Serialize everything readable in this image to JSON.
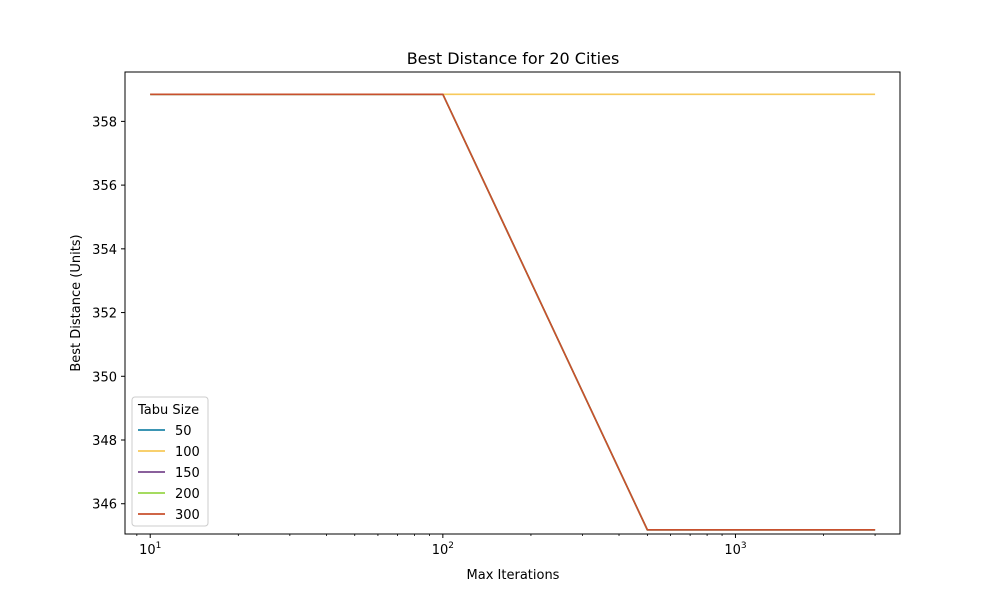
{
  "chart_data": {
    "type": "line",
    "title": "Best Distance for 20 Cities",
    "xlabel": "Max Iterations",
    "ylabel": "Best Distance (Units)",
    "x_scale": "log",
    "xlim": [
      8.2,
      3650
    ],
    "ylim": [
      345.05,
      359.55
    ],
    "x_ticks": [
      {
        "value": 10,
        "base": "10",
        "exp": "1"
      },
      {
        "value": 100,
        "base": "10",
        "exp": "2"
      },
      {
        "value": 1000,
        "base": "10",
        "exp": "3"
      }
    ],
    "y_ticks": [
      346,
      348,
      350,
      352,
      354,
      356,
      358
    ],
    "grid": false,
    "legend": {
      "title": "Tabu Size",
      "placement": "lower-left"
    },
    "x": [
      10,
      100,
      500,
      3000
    ],
    "series": [
      {
        "name": "50",
        "color": "#1f86a8",
        "values": [
          358.85,
          358.85,
          345.18,
          345.18
        ]
      },
      {
        "name": "100",
        "color": "#f7c95a",
        "values": [
          358.85,
          358.85,
          358.85,
          358.85
        ]
      },
      {
        "name": "150",
        "color": "#7a4a8e",
        "values": [
          358.85,
          358.85,
          345.18,
          345.18
        ]
      },
      {
        "name": "200",
        "color": "#98d64a",
        "values": [
          358.85,
          358.85,
          345.18,
          345.18
        ]
      },
      {
        "name": "300",
        "color": "#c8502d",
        "values": [
          358.85,
          358.85,
          345.18,
          345.18
        ]
      }
    ]
  }
}
